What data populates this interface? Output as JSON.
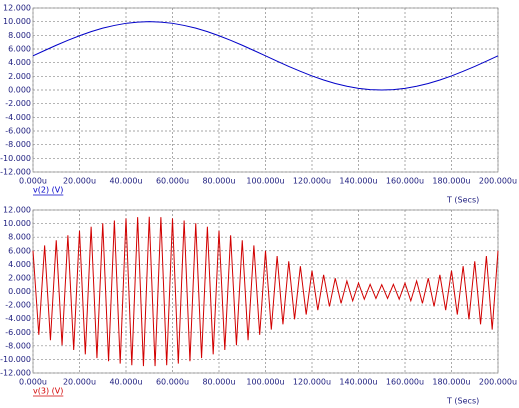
{
  "chart_data": [
    {
      "type": "line",
      "x": [
        0,
        5,
        10,
        15,
        20,
        25,
        30,
        35,
        40,
        45,
        50,
        55,
        60,
        65,
        70,
        75,
        80,
        85,
        90,
        95,
        100,
        105,
        110,
        115,
        120,
        125,
        130,
        135,
        140,
        145,
        150,
        155,
        160,
        165,
        170,
        175,
        180,
        185,
        190,
        195,
        200
      ],
      "series": [
        {
          "name": "v(2) (V)",
          "color": "#0000c8",
          "values": [
            5,
            5.78,
            6.55,
            7.27,
            7.94,
            8.54,
            9.05,
            9.45,
            9.76,
            9.94,
            10,
            9.94,
            9.76,
            9.45,
            9.05,
            8.54,
            7.94,
            7.27,
            6.55,
            5.78,
            5,
            4.22,
            3.45,
            2.73,
            2.06,
            1.46,
            0.95,
            0.55,
            0.24,
            0.06,
            0,
            0.06,
            0.24,
            0.55,
            0.95,
            1.46,
            2.06,
            2.73,
            3.45,
            4.22,
            5
          ]
        }
      ],
      "x_label": "T (Secs)",
      "xlim": [
        0,
        200
      ],
      "xticks": [
        {
          "value": 0,
          "label": "0.000u"
        },
        {
          "value": 20,
          "label": "20.000u"
        },
        {
          "value": 40,
          "label": "40.000u"
        },
        {
          "value": 60,
          "label": "60.000u"
        },
        {
          "value": 80,
          "label": "80.000u"
        },
        {
          "value": 100,
          "label": "100.000u"
        },
        {
          "value": 120,
          "label": "120.000u"
        },
        {
          "value": 140,
          "label": "140.000u"
        },
        {
          "value": 160,
          "label": "160.000u"
        },
        {
          "value": 180,
          "label": "180.000u"
        },
        {
          "value": 200,
          "label": "200.000u"
        }
      ],
      "ylim": [
        -12,
        12
      ],
      "yticks": [
        {
          "value": 12,
          "label": "12.000"
        },
        {
          "value": 10,
          "label": "10.000"
        },
        {
          "value": 8,
          "label": "8.000"
        },
        {
          "value": 6,
          "label": "6.000"
        },
        {
          "value": 4,
          "label": "4.000"
        },
        {
          "value": 2,
          "label": "2.000"
        },
        {
          "value": 0,
          "label": "0.000"
        },
        {
          "value": -2,
          "label": "-2.000"
        },
        {
          "value": -4,
          "label": "-4.000"
        },
        {
          "value": -6,
          "label": "-6.000"
        },
        {
          "value": -8,
          "label": "-8.000"
        },
        {
          "value": -10,
          "label": "-10.000"
        },
        {
          "value": -12,
          "label": "-12.000"
        }
      ],
      "grid": true
    },
    {
      "type": "line",
      "x": [
        0,
        2.5,
        5,
        7.5,
        10,
        12.5,
        15,
        17.5,
        20,
        22.5,
        25,
        27.5,
        30,
        32.5,
        35,
        37.5,
        40,
        42.5,
        45,
        47.5,
        50,
        52.5,
        55,
        57.5,
        60,
        62.5,
        65,
        67.5,
        70,
        72.5,
        75,
        77.5,
        80,
        82.5,
        85,
        87.5,
        90,
        92.5,
        95,
        97.5,
        100,
        102.5,
        105,
        107.5,
        110,
        112.5,
        115,
        117.5,
        120,
        122.5,
        125,
        127.5,
        130,
        132.5,
        135,
        137.5,
        140,
        142.5,
        145,
        147.5,
        150,
        152.5,
        155,
        157.5,
        160,
        162.5,
        165,
        167.5,
        170,
        172.5,
        175,
        177.5,
        180,
        182.5,
        185,
        187.5,
        190,
        192.5,
        195,
        197.5,
        200
      ],
      "series": [
        {
          "name": "v(3) (V)",
          "color": "#d20000",
          "values": [
            6,
            -6.39,
            6.78,
            -7.17,
            7.55,
            -7.91,
            8.27,
            -8.61,
            8.94,
            -9.25,
            9.54,
            -9.8,
            10.05,
            -10.26,
            10.46,
            -10.62,
            10.76,
            -10.86,
            10.94,
            -10.98,
            11,
            -10.98,
            10.94,
            -10.86,
            10.76,
            -10.62,
            10.46,
            -10.26,
            10.05,
            -9.8,
            9.54,
            -9.25,
            8.94,
            -8.61,
            8.27,
            -7.91,
            7.55,
            -7.17,
            6.78,
            -6.39,
            6,
            -5.61,
            5.22,
            -4.83,
            4.45,
            -4.09,
            3.73,
            -3.39,
            3.06,
            -2.75,
            2.46,
            -2.2,
            1.95,
            -1.74,
            1.54,
            -1.38,
            1.24,
            -1.14,
            1.06,
            -1.02,
            1,
            -1.02,
            1.06,
            -1.14,
            1.24,
            -1.38,
            1.54,
            -1.74,
            1.95,
            -2.2,
            2.46,
            -2.75,
            3.06,
            -3.39,
            3.73,
            -4.09,
            4.45,
            -4.83,
            5.22,
            -5.61,
            6
          ]
        }
      ],
      "x_label": "T (Secs)",
      "xlim": [
        0,
        200
      ],
      "xticks": [
        {
          "value": 0,
          "label": "0.000u"
        },
        {
          "value": 20,
          "label": "20.000u"
        },
        {
          "value": 40,
          "label": "40.000u"
        },
        {
          "value": 60,
          "label": "60.000u"
        },
        {
          "value": 80,
          "label": "80.000u"
        },
        {
          "value": 100,
          "label": "100.000u"
        },
        {
          "value": 120,
          "label": "120.000u"
        },
        {
          "value": 140,
          "label": "140.000u"
        },
        {
          "value": 160,
          "label": "160.000u"
        },
        {
          "value": 180,
          "label": "180.000u"
        },
        {
          "value": 200,
          "label": "200.000u"
        }
      ],
      "ylim": [
        -12,
        12
      ],
      "yticks": [
        {
          "value": 12,
          "label": "12.000"
        },
        {
          "value": 10,
          "label": "10.000"
        },
        {
          "value": 8,
          "label": "8.000"
        },
        {
          "value": 6,
          "label": "6.000"
        },
        {
          "value": 4,
          "label": "4.000"
        },
        {
          "value": 2,
          "label": "2.000"
        },
        {
          "value": 0,
          "label": "0.000"
        },
        {
          "value": -2,
          "label": "-2.000"
        },
        {
          "value": -4,
          "label": "-4.000"
        },
        {
          "value": -6,
          "label": "-6.000"
        },
        {
          "value": -8,
          "label": "-8.000"
        },
        {
          "value": -10,
          "label": "-10.000"
        },
        {
          "value": -12,
          "label": "-12.000"
        }
      ],
      "grid": true
    }
  ]
}
